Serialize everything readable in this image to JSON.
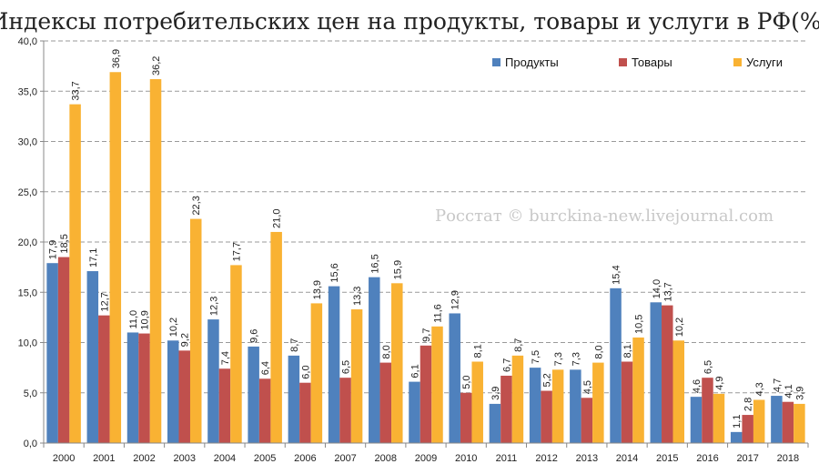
{
  "chart_data": {
    "type": "bar",
    "title": "Индексы потребительских цен на продукты, товары и услуги в РФ(%)",
    "watermark": "Росстат © burckina-new.livejournal.com",
    "categories": [
      "2000",
      "2001",
      "2002",
      "2003",
      "2004",
      "2005",
      "2006",
      "2007",
      "2008",
      "2009",
      "2010",
      "2011",
      "2012",
      "2013",
      "2014",
      "2015",
      "2016",
      "2017",
      "2018"
    ],
    "series": [
      {
        "name": "Продукты",
        "color": "#4f81bd",
        "values": [
          17.9,
          17.1,
          11.0,
          10.2,
          12.3,
          9.6,
          8.7,
          15.6,
          16.5,
          6.1,
          12.9,
          3.9,
          7.5,
          7.3,
          15.4,
          14.0,
          4.6,
          1.1,
          4.7
        ],
        "labels": [
          "17,9",
          "17,1",
          "11,0",
          "10,2",
          "12,3",
          "9,6",
          "8,7",
          "15,6",
          "16,5",
          "6,1",
          "12,9",
          "3,9",
          "7,5",
          "7,3",
          "15,4",
          "14,0",
          "4,6",
          "1,1",
          "4,7"
        ]
      },
      {
        "name": "Товары",
        "color": "#c0504d",
        "values": [
          18.5,
          12.7,
          10.9,
          9.2,
          7.4,
          6.4,
          6.0,
          6.5,
          8.0,
          9.7,
          5.0,
          6.7,
          5.2,
          4.5,
          8.1,
          13.7,
          6.5,
          2.8,
          4.1
        ],
        "labels": [
          "18,5",
          "12,7",
          "10,9",
          "9,2",
          "7,4",
          "6,4",
          "6,0",
          "6,5",
          "8,0",
          "9,7",
          "5,0",
          "6,7",
          "5,2",
          "4,5",
          "8,1",
          "13,7",
          "6,5",
          "2,8",
          "4,1"
        ]
      },
      {
        "name": "Услуги",
        "color": "#f9b233",
        "values": [
          33.7,
          36.9,
          36.2,
          22.3,
          17.7,
          21.0,
          13.9,
          13.3,
          15.9,
          11.6,
          8.1,
          8.7,
          7.3,
          8.0,
          10.5,
          10.2,
          4.9,
          4.3,
          3.9
        ],
        "labels": [
          "33,7",
          "36,9",
          "36,2",
          "22,3",
          "17,7",
          "21,0",
          "13,9",
          "13,3",
          "15,9",
          "11,6",
          "8,1",
          "8,7",
          "7,3",
          "8,0",
          "10,5",
          "10,2",
          "4,9",
          "4,3",
          "3,9"
        ]
      }
    ],
    "ylim": [
      0,
      40
    ],
    "yticks": [
      0,
      5,
      10,
      15,
      20,
      25,
      30,
      35,
      40
    ],
    "ytick_labels": [
      "0,0",
      "5,0",
      "10,0",
      "15,0",
      "20,0",
      "25,0",
      "30,0",
      "35,0",
      "40,0"
    ],
    "grid": true,
    "legend_position": "top-right"
  }
}
